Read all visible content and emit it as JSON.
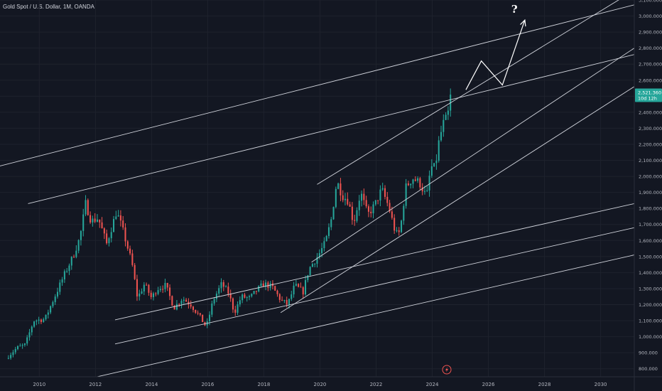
{
  "header": {
    "title": "Gold Spot / U.S. Dollar, 1M, OANDA"
  },
  "chart_data": {
    "type": "candlestick",
    "title": "Gold Spot / U.S. Dollar, 1M, OANDA",
    "xlabel": "",
    "ylabel": "",
    "x_ticks": [
      "2010",
      "2012",
      "2014",
      "2016",
      "2018",
      "2020",
      "2022",
      "2024",
      "2026",
      "2028",
      "2030"
    ],
    "y_ticks": [
      "800.000",
      "900.000",
      "1,000.000",
      "1,100.000",
      "1,200.000",
      "1,300.000",
      "1,400.000",
      "1,500.000",
      "1,600.000",
      "1,700.000",
      "1,800.000",
      "1,900.000",
      "2,000.000",
      "2,100.000",
      "2,200.000",
      "2,300.000",
      "2,400.000",
      "2,500.000",
      "2,600.000",
      "2,700.000",
      "2,800.000",
      "2,900.000",
      "3,000.000",
      "3,100.000"
    ],
    "xlim": [
      2008.6,
      2031.2
    ],
    "ylim": [
      750,
      3100
    ],
    "current_price": {
      "price": "2,521.360",
      "countdown": "10d 12h",
      "value": 2521.36
    },
    "up_color": "#26a69a",
    "down_color": "#ef5350",
    "close_anchors": [
      [
        2008.9,
        880
      ],
      [
        2009.2,
        930
      ],
      [
        2009.5,
        950
      ],
      [
        2009.8,
        1100
      ],
      [
        2010.2,
        1110
      ],
      [
        2010.5,
        1230
      ],
      [
        2010.9,
        1390
      ],
      [
        2011.2,
        1500
      ],
      [
        2011.45,
        1620
      ],
      [
        2011.65,
        1830
      ],
      [
        2011.85,
        1720
      ],
      [
        2012.1,
        1740
      ],
      [
        2012.4,
        1580
      ],
      [
        2012.75,
        1780
      ],
      [
        2012.95,
        1680
      ],
      [
        2013.3,
        1460
      ],
      [
        2013.5,
        1240
      ],
      [
        2013.75,
        1330
      ],
      [
        2014.0,
        1240
      ],
      [
        2014.2,
        1300
      ],
      [
        2014.5,
        1320
      ],
      [
        2014.8,
        1180
      ],
      [
        2015.1,
        1240
      ],
      [
        2015.4,
        1200
      ],
      [
        2015.7,
        1130
      ],
      [
        2015.95,
        1060
      ],
      [
        2016.2,
        1230
      ],
      [
        2016.5,
        1330
      ],
      [
        2016.75,
        1270
      ],
      [
        2016.95,
        1150
      ],
      [
        2017.2,
        1250
      ],
      [
        2017.5,
        1240
      ],
      [
        2017.75,
        1290
      ],
      [
        2018.0,
        1330
      ],
      [
        2018.3,
        1310
      ],
      [
        2018.6,
        1230
      ],
      [
        2018.85,
        1200
      ],
      [
        2019.1,
        1320
      ],
      [
        2019.4,
        1280
      ],
      [
        2019.6,
        1420
      ],
      [
        2019.95,
        1510
      ],
      [
        2020.2,
        1590
      ],
      [
        2020.4,
        1730
      ],
      [
        2020.6,
        1970
      ],
      [
        2020.8,
        1880
      ],
      [
        2021.0,
        1850
      ],
      [
        2021.2,
        1710
      ],
      [
        2021.45,
        1900
      ],
      [
        2021.7,
        1760
      ],
      [
        2021.95,
        1820
      ],
      [
        2022.2,
        1920
      ],
      [
        2022.45,
        1810
      ],
      [
        2022.7,
        1640
      ],
      [
        2022.85,
        1650
      ],
      [
        2023.05,
        1930
      ],
      [
        2023.3,
        1990
      ],
      [
        2023.55,
        1960
      ],
      [
        2023.8,
        1870
      ],
      [
        2023.95,
        2060
      ],
      [
        2024.1,
        2050
      ],
      [
        2024.25,
        2230
      ],
      [
        2024.4,
        2330
      ],
      [
        2024.55,
        2370
      ],
      [
        2024.65,
        2510
      ]
    ],
    "trendlines": [
      {
        "x1": 2008.6,
        "y1": 2065,
        "x2": 2031.2,
        "y2": 3070
      },
      {
        "x1": 2009.6,
        "y1": 1830,
        "x2": 2031.2,
        "y2": 2760
      },
      {
        "x1": 2019.9,
        "y1": 1950,
        "x2": 2031.2,
        "y2": 3160
      },
      {
        "x1": 2019.7,
        "y1": 1465,
        "x2": 2031.2,
        "y2": 2800
      },
      {
        "x1": 2018.6,
        "y1": 1150,
        "x2": 2031.2,
        "y2": 2560
      },
      {
        "x1": 2012.7,
        "y1": 1105,
        "x2": 2031.2,
        "y2": 1830
      },
      {
        "x1": 2012.7,
        "y1": 955,
        "x2": 2031.2,
        "y2": 1680
      },
      {
        "x1": 2011.3,
        "y1": 720,
        "x2": 2031.2,
        "y2": 1510
      }
    ],
    "projection_path": [
      [
        2025.2,
        2540
      ],
      [
        2025.75,
        2720
      ],
      [
        2026.5,
        2570
      ],
      [
        2027.3,
        2975
      ]
    ],
    "projection_label": "?"
  }
}
